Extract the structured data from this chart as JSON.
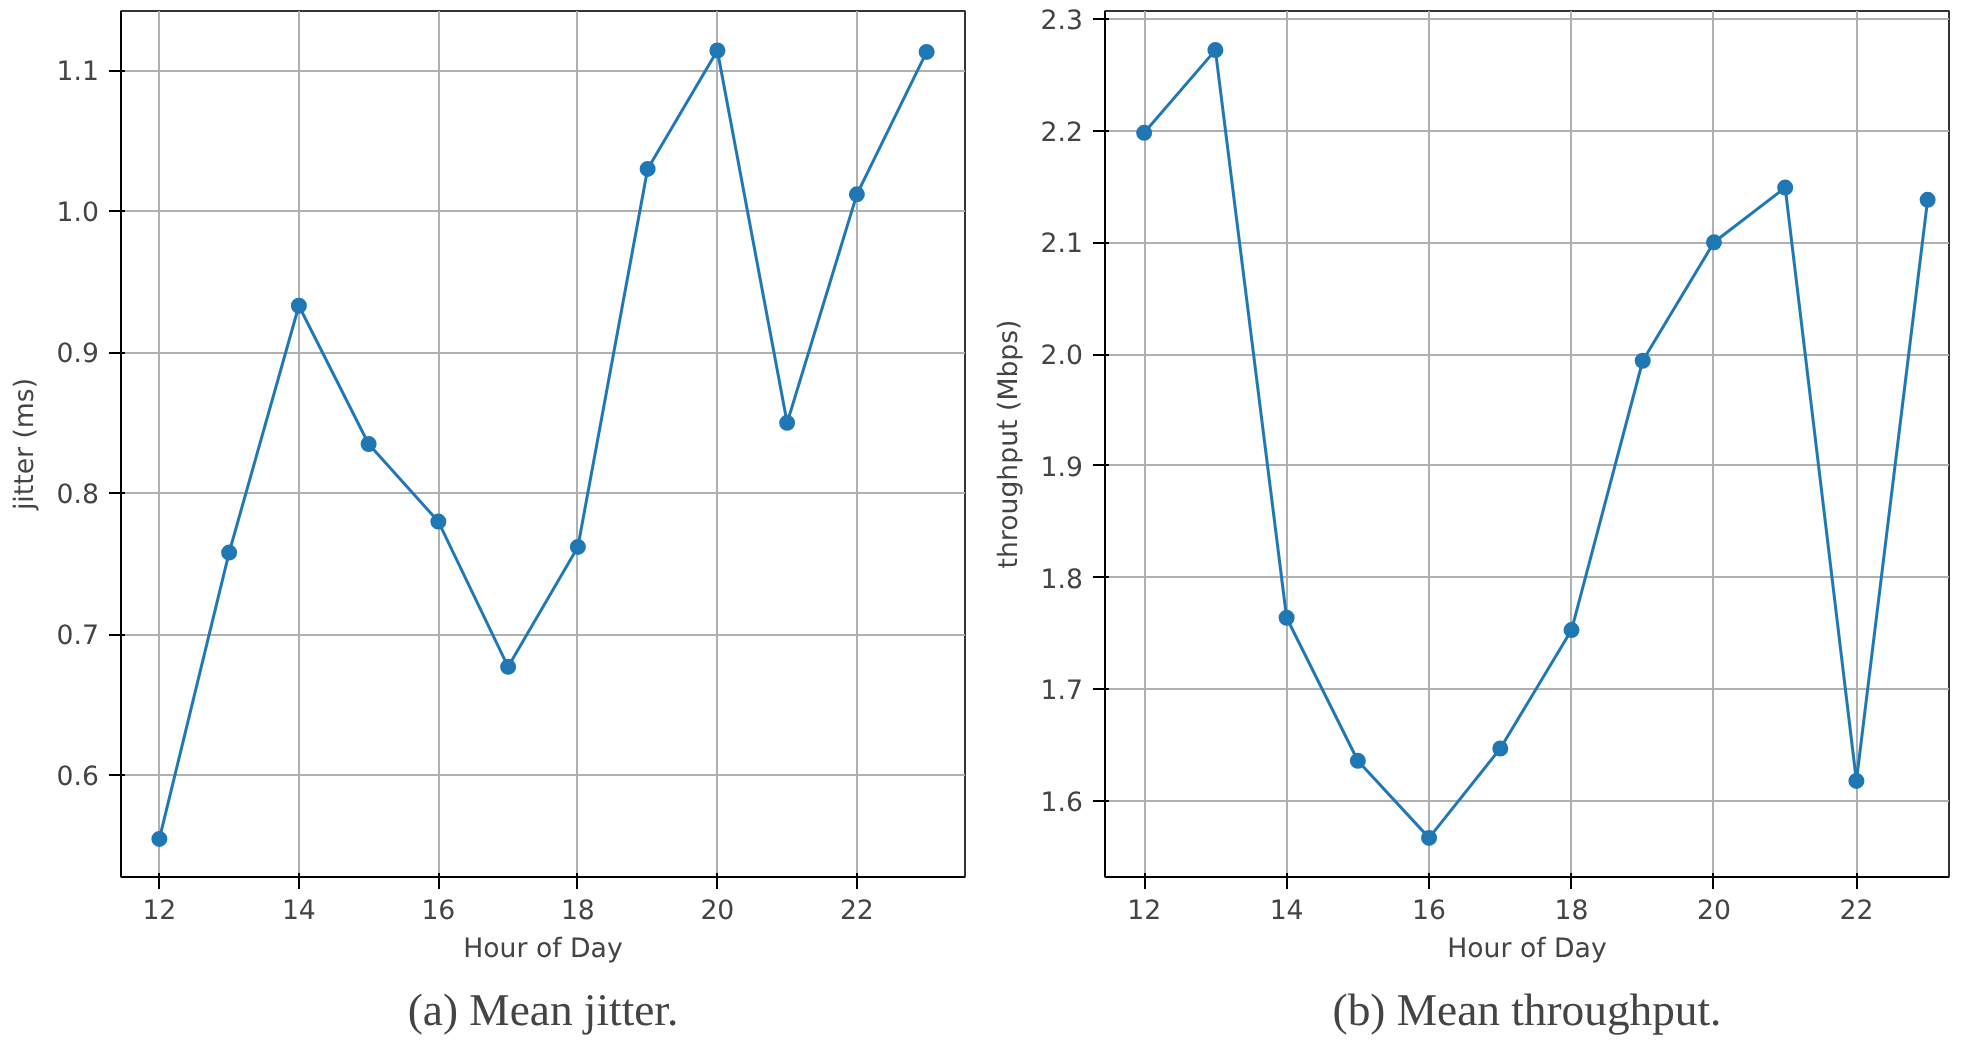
{
  "chart_data": [
    {
      "type": "line",
      "title": "(a) Mean jitter.",
      "xlabel": "Hour of Day",
      "ylabel": "jitter (ms)",
      "x": [
        12,
        13,
        14,
        15,
        16,
        17,
        18,
        19,
        20,
        21,
        22,
        23
      ],
      "series": [
        {
          "color": "#1f77b4",
          "values": [
            0.555,
            0.758,
            0.933,
            0.835,
            0.78,
            0.677,
            0.762,
            1.03,
            1.114,
            0.85,
            1.012,
            1.113
          ]
        }
      ],
      "xlim": [
        11.45,
        23.55
      ],
      "ylim": [
        0.528,
        1.142
      ],
      "xticks": [
        12,
        14,
        16,
        18,
        20,
        22
      ],
      "yticks": [
        0.6,
        0.7,
        0.8,
        0.9,
        {
          "value": 1.0,
          "label": "1.0"
        },
        1.1
      ],
      "grid": true,
      "marker": "circle",
      "line_style": "solid"
    },
    {
      "type": "line",
      "title": "(b) Mean throughput.",
      "xlabel": "Hour of Day",
      "ylabel": "throughput (Mbps)",
      "x": [
        12,
        13,
        14,
        15,
        16,
        17,
        18,
        19,
        20,
        21,
        22,
        23
      ],
      "series": [
        {
          "color": "#1f77b4",
          "values": [
            2.198,
            2.272,
            1.764,
            1.636,
            1.567,
            1.647,
            1.753,
            1.994,
            2.1,
            2.149,
            1.618,
            2.138
          ]
        }
      ],
      "xlim": [
        11.45,
        23.3
      ],
      "ylim": [
        1.532,
        2.307
      ],
      "xticks": [
        12,
        14,
        16,
        18,
        20,
        22
      ],
      "yticks": [
        1.6,
        1.7,
        1.8,
        1.9,
        {
          "value": 2.0,
          "label": "2.0"
        },
        2.1,
        2.2,
        2.3
      ],
      "grid": true,
      "marker": "circle",
      "line_style": "solid"
    }
  ]
}
